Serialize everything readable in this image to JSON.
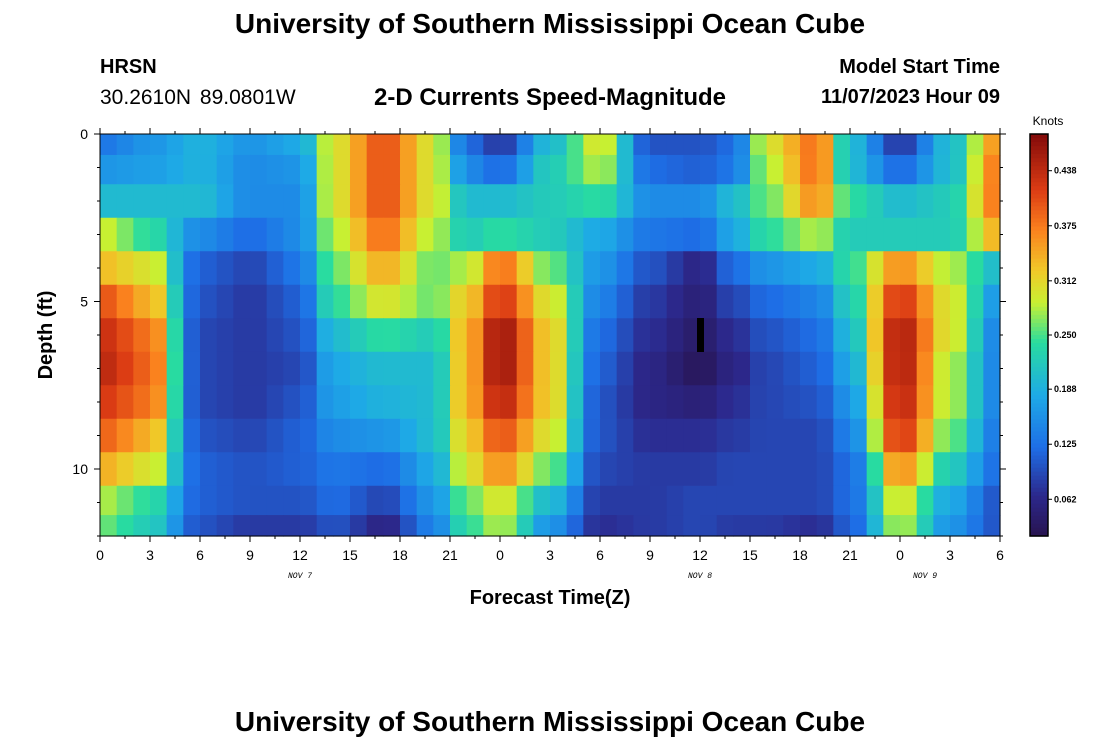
{
  "page": {
    "title": "University of Southern Mississippi Ocean Cube",
    "station": "HRSN",
    "coords": "30.2610N  89.0801W",
    "subtitle": "2-D Currents Speed-Magnitude",
    "model_start_label": "Model Start Time",
    "model_start_value": "11/07/2023 Hour 09",
    "bottom_title": "University of Southern Mississippi Ocean Cube"
  },
  "chart_data": {
    "type": "heatmap",
    "title": "2-D Currents Speed-Magnitude",
    "xlabel": "Forecast Time(Z)",
    "ylabel": "Depth (ft)",
    "x_start_offset_hours": 0,
    "x_end_offset_hours": 54,
    "x_tick_labels": [
      "0",
      "3",
      "6",
      "9",
      "12",
      "15",
      "18",
      "21",
      "0",
      "3",
      "6",
      "9",
      "12",
      "15",
      "18",
      "21",
      "0",
      "3",
      "6"
    ],
    "date_labels": [
      {
        "label": "NOV 7",
        "at_tick": 4
      },
      {
        "label": "NOV 8",
        "at_tick": 12
      },
      {
        "label": "NOV 9",
        "at_tick": 16.5
      }
    ],
    "y_ticks": [
      0,
      5,
      10
    ],
    "ylim": [
      0,
      12
    ],
    "colorbar": {
      "title": "Knots",
      "ticks": [
        0.062,
        0.125,
        0.188,
        0.25,
        0.312,
        0.375,
        0.438
      ],
      "range": [
        0.02,
        0.48
      ]
    },
    "layers": [
      {
        "depth": 0.25,
        "anchors": [
          [
            0,
            0.13
          ],
          [
            3,
            0.16
          ],
          [
            6,
            0.19
          ],
          [
            9,
            0.16
          ],
          [
            12,
            0.18
          ],
          [
            14,
            0.3
          ],
          [
            17,
            0.4
          ],
          [
            20,
            0.3
          ],
          [
            22,
            0.12
          ],
          [
            24,
            0.08
          ],
          [
            27,
            0.2
          ],
          [
            30,
            0.3
          ],
          [
            33,
            0.1
          ],
          [
            36,
            0.1
          ],
          [
            38,
            0.12
          ],
          [
            40,
            0.3
          ],
          [
            43,
            0.38
          ],
          [
            45,
            0.2
          ],
          [
            48,
            0.08
          ],
          [
            51,
            0.2
          ],
          [
            54,
            0.36
          ]
        ]
      },
      {
        "depth": 1,
        "anchors": [
          [
            0,
            0.16
          ],
          [
            3,
            0.17
          ],
          [
            6,
            0.19
          ],
          [
            9,
            0.15
          ],
          [
            12,
            0.16
          ],
          [
            14,
            0.3
          ],
          [
            17,
            0.4
          ],
          [
            20,
            0.3
          ],
          [
            22,
            0.15
          ],
          [
            24,
            0.12
          ],
          [
            27,
            0.22
          ],
          [
            30,
            0.28
          ],
          [
            33,
            0.12
          ],
          [
            36,
            0.11
          ],
          [
            38,
            0.13
          ],
          [
            40,
            0.28
          ],
          [
            43,
            0.38
          ],
          [
            45,
            0.2
          ],
          [
            48,
            0.12
          ],
          [
            51,
            0.2
          ],
          [
            54,
            0.38
          ]
        ]
      },
      {
        "depth": 2,
        "anchors": [
          [
            0,
            0.2
          ],
          [
            3,
            0.2
          ],
          [
            6,
            0.2
          ],
          [
            9,
            0.15
          ],
          [
            12,
            0.15
          ],
          [
            14,
            0.3
          ],
          [
            17,
            0.4
          ],
          [
            20,
            0.3
          ],
          [
            22,
            0.2
          ],
          [
            24,
            0.2
          ],
          [
            27,
            0.22
          ],
          [
            30,
            0.24
          ],
          [
            33,
            0.15
          ],
          [
            36,
            0.15
          ],
          [
            38,
            0.2
          ],
          [
            40,
            0.26
          ],
          [
            43,
            0.36
          ],
          [
            45,
            0.24
          ],
          [
            48,
            0.2
          ],
          [
            51,
            0.22
          ],
          [
            54,
            0.38
          ]
        ]
      },
      {
        "depth": 3,
        "anchors": [
          [
            0,
            0.29
          ],
          [
            3,
            0.24
          ],
          [
            6,
            0.15
          ],
          [
            9,
            0.12
          ],
          [
            12,
            0.15
          ],
          [
            14,
            0.28
          ],
          [
            17,
            0.38
          ],
          [
            20,
            0.28
          ],
          [
            22,
            0.22
          ],
          [
            24,
            0.24
          ],
          [
            27,
            0.22
          ],
          [
            30,
            0.18
          ],
          [
            33,
            0.13
          ],
          [
            36,
            0.12
          ],
          [
            38,
            0.18
          ],
          [
            40,
            0.24
          ],
          [
            43,
            0.28
          ],
          [
            45,
            0.22
          ],
          [
            48,
            0.22
          ],
          [
            51,
            0.22
          ],
          [
            54,
            0.34
          ]
        ]
      },
      {
        "depth": 4,
        "anchors": [
          [
            0,
            0.33
          ],
          [
            3,
            0.3
          ],
          [
            6,
            0.11
          ],
          [
            9,
            0.09
          ],
          [
            12,
            0.13
          ],
          [
            14,
            0.26
          ],
          [
            17,
            0.34
          ],
          [
            20,
            0.26
          ],
          [
            22,
            0.28
          ],
          [
            24,
            0.38
          ],
          [
            27,
            0.26
          ],
          [
            30,
            0.16
          ],
          [
            33,
            0.1
          ],
          [
            36,
            0.06
          ],
          [
            38,
            0.12
          ],
          [
            40,
            0.16
          ],
          [
            43,
            0.18
          ],
          [
            45,
            0.24
          ],
          [
            48,
            0.36
          ],
          [
            51,
            0.28
          ],
          [
            54,
            0.2
          ]
        ]
      },
      {
        "depth": 5,
        "anchors": [
          [
            0,
            0.4
          ],
          [
            3,
            0.34
          ],
          [
            6,
            0.1
          ],
          [
            9,
            0.08
          ],
          [
            12,
            0.11
          ],
          [
            14,
            0.24
          ],
          [
            17,
            0.3
          ],
          [
            20,
            0.26
          ],
          [
            22,
            0.32
          ],
          [
            24,
            0.42
          ],
          [
            27,
            0.3
          ],
          [
            30,
            0.14
          ],
          [
            33,
            0.08
          ],
          [
            36,
            0.05
          ],
          [
            38,
            0.09
          ],
          [
            40,
            0.12
          ],
          [
            43,
            0.14
          ],
          [
            45,
            0.22
          ],
          [
            48,
            0.42
          ],
          [
            51,
            0.3
          ],
          [
            54,
            0.16
          ]
        ]
      },
      {
        "depth": 6,
        "anchors": [
          [
            0,
            0.43
          ],
          [
            3,
            0.38
          ],
          [
            6,
            0.09
          ],
          [
            9,
            0.08
          ],
          [
            12,
            0.1
          ],
          [
            14,
            0.2
          ],
          [
            17,
            0.24
          ],
          [
            20,
            0.22
          ],
          [
            22,
            0.34
          ],
          [
            24,
            0.46
          ],
          [
            27,
            0.32
          ],
          [
            30,
            0.12
          ],
          [
            33,
            0.07
          ],
          [
            36,
            0.04
          ],
          [
            38,
            0.07
          ],
          [
            40,
            0.1
          ],
          [
            43,
            0.12
          ],
          [
            45,
            0.2
          ],
          [
            48,
            0.45
          ],
          [
            51,
            0.3
          ],
          [
            54,
            0.14
          ]
        ]
      },
      {
        "depth": 7,
        "anchors": [
          [
            0,
            0.44
          ],
          [
            3,
            0.39
          ],
          [
            6,
            0.09
          ],
          [
            9,
            0.08
          ],
          [
            12,
            0.09
          ],
          [
            14,
            0.18
          ],
          [
            17,
            0.2
          ],
          [
            20,
            0.2
          ],
          [
            22,
            0.34
          ],
          [
            24,
            0.46
          ],
          [
            27,
            0.32
          ],
          [
            30,
            0.11
          ],
          [
            33,
            0.06
          ],
          [
            36,
            0.03
          ],
          [
            38,
            0.06
          ],
          [
            40,
            0.09
          ],
          [
            43,
            0.11
          ],
          [
            45,
            0.18
          ],
          [
            48,
            0.45
          ],
          [
            51,
            0.28
          ],
          [
            54,
            0.14
          ]
        ]
      },
      {
        "depth": 8,
        "anchors": [
          [
            0,
            0.42
          ],
          [
            3,
            0.38
          ],
          [
            6,
            0.09
          ],
          [
            9,
            0.08
          ],
          [
            12,
            0.1
          ],
          [
            14,
            0.17
          ],
          [
            17,
            0.19
          ],
          [
            20,
            0.2
          ],
          [
            22,
            0.34
          ],
          [
            24,
            0.44
          ],
          [
            27,
            0.32
          ],
          [
            30,
            0.1
          ],
          [
            33,
            0.06
          ],
          [
            36,
            0.05
          ],
          [
            38,
            0.07
          ],
          [
            40,
            0.09
          ],
          [
            43,
            0.1
          ],
          [
            45,
            0.16
          ],
          [
            48,
            0.44
          ],
          [
            51,
            0.28
          ],
          [
            54,
            0.14
          ]
        ]
      },
      {
        "depth": 9,
        "anchors": [
          [
            0,
            0.39
          ],
          [
            3,
            0.34
          ],
          [
            6,
            0.1
          ],
          [
            9,
            0.09
          ],
          [
            12,
            0.11
          ],
          [
            14,
            0.15
          ],
          [
            17,
            0.16
          ],
          [
            20,
            0.2
          ],
          [
            22,
            0.32
          ],
          [
            24,
            0.4
          ],
          [
            27,
            0.3
          ],
          [
            30,
            0.1
          ],
          [
            33,
            0.07
          ],
          [
            36,
            0.07
          ],
          [
            38,
            0.08
          ],
          [
            40,
            0.09
          ],
          [
            43,
            0.09
          ],
          [
            45,
            0.14
          ],
          [
            48,
            0.42
          ],
          [
            51,
            0.26
          ],
          [
            54,
            0.13
          ]
        ]
      },
      {
        "depth": 10,
        "anchors": [
          [
            0,
            0.34
          ],
          [
            3,
            0.3
          ],
          [
            6,
            0.11
          ],
          [
            9,
            0.1
          ],
          [
            12,
            0.11
          ],
          [
            14,
            0.13
          ],
          [
            17,
            0.12
          ],
          [
            20,
            0.18
          ],
          [
            22,
            0.3
          ],
          [
            24,
            0.36
          ],
          [
            27,
            0.26
          ],
          [
            30,
            0.09
          ],
          [
            33,
            0.08
          ],
          [
            36,
            0.08
          ],
          [
            38,
            0.09
          ],
          [
            40,
            0.09
          ],
          [
            43,
            0.09
          ],
          [
            45,
            0.12
          ],
          [
            48,
            0.36
          ],
          [
            51,
            0.22
          ],
          [
            54,
            0.12
          ]
        ]
      },
      {
        "depth": 11,
        "anchors": [
          [
            0,
            0.28
          ],
          [
            3,
            0.24
          ],
          [
            6,
            0.11
          ],
          [
            9,
            0.1
          ],
          [
            12,
            0.1
          ],
          [
            14,
            0.12
          ],
          [
            17,
            0.09
          ],
          [
            20,
            0.16
          ],
          [
            22,
            0.26
          ],
          [
            24,
            0.3
          ],
          [
            27,
            0.2
          ],
          [
            30,
            0.08
          ],
          [
            33,
            0.08
          ],
          [
            36,
            0.09
          ],
          [
            38,
            0.09
          ],
          [
            40,
            0.09
          ],
          [
            43,
            0.09
          ],
          [
            45,
            0.12
          ],
          [
            48,
            0.3
          ],
          [
            51,
            0.18
          ],
          [
            54,
            0.1
          ]
        ]
      },
      {
        "depth": 11.75,
        "anchors": [
          [
            0,
            0.26
          ],
          [
            3,
            0.22
          ],
          [
            6,
            0.1
          ],
          [
            9,
            0.08
          ],
          [
            12,
            0.08
          ],
          [
            14,
            0.1
          ],
          [
            17,
            0.06
          ],
          [
            20,
            0.14
          ],
          [
            22,
            0.24
          ],
          [
            24,
            0.28
          ],
          [
            27,
            0.16
          ],
          [
            30,
            0.07
          ],
          [
            33,
            0.08
          ],
          [
            36,
            0.09
          ],
          [
            38,
            0.08
          ],
          [
            40,
            0.08
          ],
          [
            43,
            0.07
          ],
          [
            45,
            0.11
          ],
          [
            48,
            0.28
          ],
          [
            51,
            0.16
          ],
          [
            54,
            0.1
          ]
        ]
      }
    ]
  }
}
